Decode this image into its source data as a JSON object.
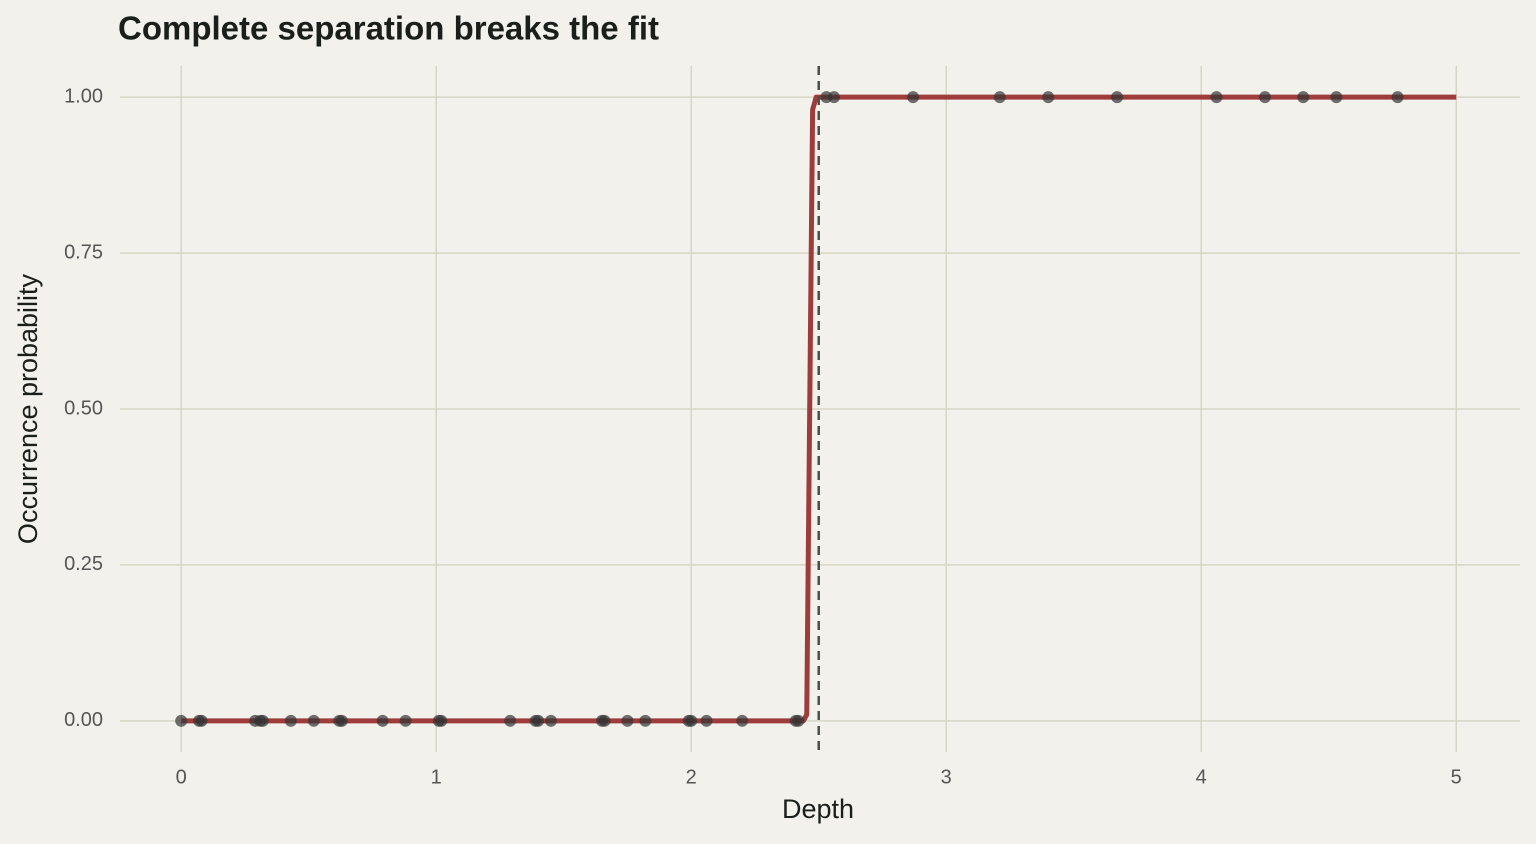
{
  "chart_data": {
    "type": "scatter",
    "title": "Complete separation breaks the fit",
    "x_label": "Depth",
    "y_label": "Occurrence probability",
    "xlim": [
      -0.24,
      5.25
    ],
    "ylim": [
      -0.05,
      1.05
    ],
    "xticks": [
      0,
      1,
      2,
      3,
      4,
      5
    ],
    "yticks": [
      {
        "value": 0,
        "label": "0.00"
      },
      {
        "value": 0.25,
        "label": "0.25"
      },
      {
        "value": 0.5,
        "label": "0.50"
      },
      {
        "value": 0.75,
        "label": "0.75"
      },
      {
        "value": 1,
        "label": "1.00"
      }
    ],
    "grid": true,
    "vline": 2.5,
    "series": [
      {
        "type": "scatter",
        "color": "#333333",
        "x": [
          0.0,
          0.07,
          0.08,
          0.29,
          0.31,
          0.32,
          0.43,
          0.52,
          0.62,
          0.63,
          0.79,
          0.88,
          1.01,
          1.02,
          1.29,
          1.39,
          1.4,
          1.45,
          1.65,
          1.66,
          1.75,
          1.82,
          1.99,
          2.0,
          2.06,
          2.2,
          2.41,
          2.42,
          2.53,
          2.56,
          2.87,
          3.21,
          3.4,
          3.67,
          4.06,
          4.25,
          4.4,
          4.53,
          4.77
        ],
        "values": [
          0,
          0,
          0,
          0,
          0,
          0,
          0,
          0,
          0,
          0,
          0,
          0,
          0,
          0,
          0,
          0,
          0,
          0,
          0,
          0,
          0,
          0,
          0,
          0,
          0,
          0,
          0,
          0,
          1,
          1,
          1,
          1,
          1,
          1,
          1,
          1,
          1,
          1,
          1
        ]
      },
      {
        "type": "line",
        "color": "#9e3c3c",
        "x": [
          0,
          2.44,
          2.453,
          2.476,
          2.49,
          5
        ],
        "values": [
          0,
          0,
          0.01,
          0.98,
          1,
          1
        ]
      }
    ]
  }
}
